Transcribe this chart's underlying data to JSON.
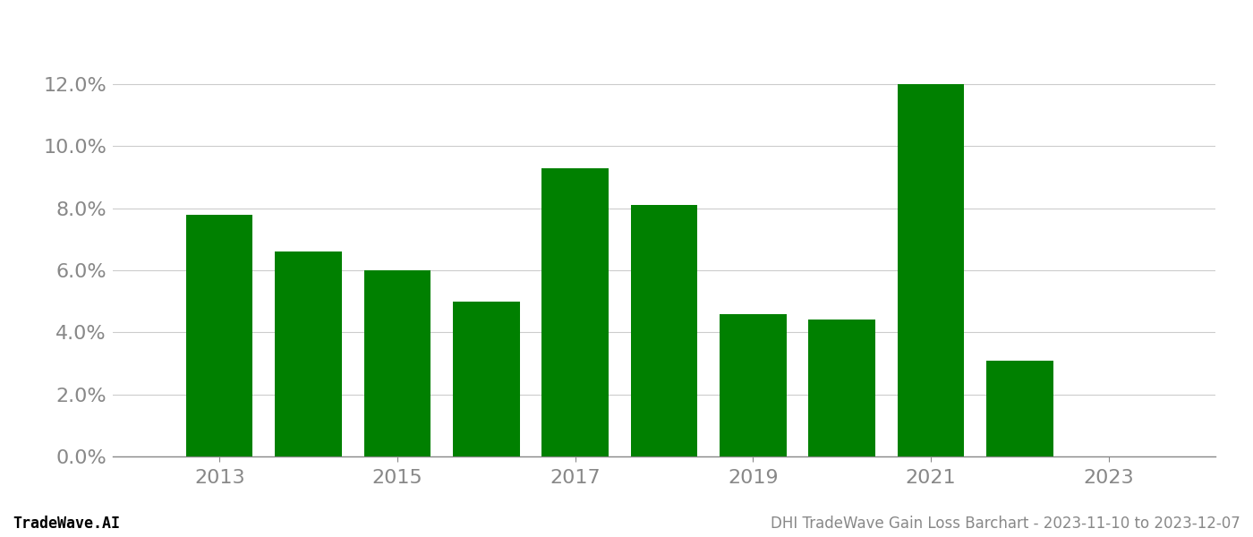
{
  "years": [
    2013,
    2014,
    2015,
    2016,
    2017,
    2018,
    2019,
    2020,
    2021,
    2022
  ],
  "values": [
    0.078,
    0.066,
    0.06,
    0.05,
    0.093,
    0.081,
    0.046,
    0.044,
    0.12,
    0.031
  ],
  "bar_color": "#008000",
  "background_color": "#ffffff",
  "grid_color": "#cccccc",
  "footer_left": "TradeWave.AI",
  "footer_right": "DHI TradeWave Gain Loss Barchart - 2023-11-10 to 2023-12-07",
  "ylim": [
    0,
    0.135
  ],
  "ytick_values": [
    0.0,
    0.02,
    0.04,
    0.06,
    0.08,
    0.1,
    0.12
  ],
  "xlim_min": 2011.8,
  "xlim_max": 2024.2,
  "xtick_values": [
    2013,
    2015,
    2017,
    2019,
    2021,
    2023
  ],
  "bar_width": 0.75,
  "footer_fontsize": 12,
  "tick_fontsize": 16,
  "axis_color": "#888888"
}
